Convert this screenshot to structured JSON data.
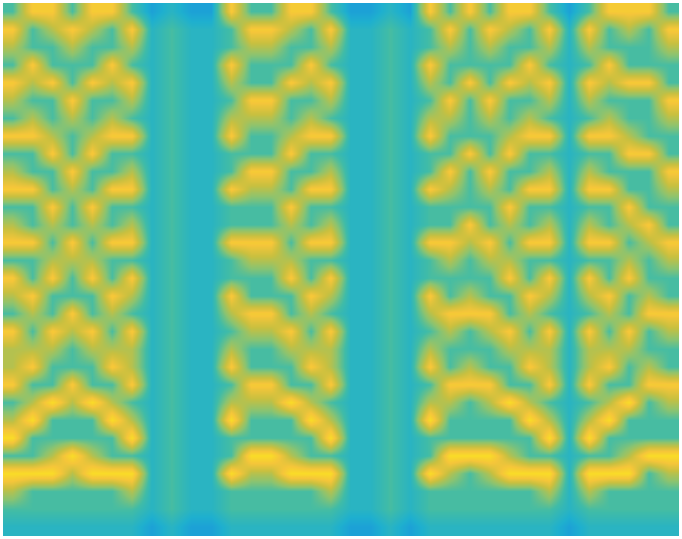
{
  "chart_data": {
    "type": "heatmap",
    "tick_labels": false,
    "color_range": [
      0,
      9
    ],
    "cells": [
      [
        4,
        8,
        8,
        4,
        8,
        8,
        4,
        2,
        3,
        2,
        2,
        8,
        4,
        4,
        8,
        8,
        4,
        2,
        2,
        3,
        2,
        8,
        4,
        8,
        4,
        8,
        8,
        4,
        2,
        4,
        8,
        8,
        8,
        4
      ],
      [
        8,
        4,
        6,
        8,
        6,
        4,
        8,
        3,
        4,
        3,
        3,
        4,
        8,
        8,
        6,
        4,
        8,
        3,
        3,
        4,
        3,
        4,
        8,
        4,
        8,
        6,
        4,
        8,
        3,
        8,
        4,
        6,
        4,
        8
      ],
      [
        6,
        4,
        4,
        6,
        4,
        4,
        6,
        3,
        4,
        3,
        3,
        4,
        6,
        6,
        4,
        4,
        6,
        3,
        3,
        4,
        3,
        4,
        6,
        4,
        6,
        4,
        4,
        6,
        3,
        6,
        4,
        4,
        4,
        6
      ],
      [
        4,
        8,
        4,
        4,
        4,
        8,
        4,
        3,
        4,
        3,
        3,
        8,
        4,
        4,
        4,
        8,
        4,
        3,
        3,
        4,
        3,
        8,
        4,
        4,
        4,
        4,
        8,
        4,
        3,
        4,
        8,
        4,
        4,
        4
      ],
      [
        8,
        6,
        8,
        4,
        8,
        6,
        8,
        3,
        4,
        3,
        3,
        6,
        4,
        4,
        8,
        6,
        8,
        3,
        3,
        4,
        3,
        6,
        4,
        8,
        4,
        8,
        6,
        8,
        3,
        8,
        6,
        8,
        8,
        4
      ],
      [
        6,
        4,
        4,
        8,
        4,
        4,
        6,
        3,
        4,
        3,
        3,
        4,
        8,
        8,
        4,
        4,
        6,
        3,
        3,
        4,
        3,
        4,
        8,
        4,
        8,
        4,
        4,
        6,
        3,
        6,
        4,
        4,
        4,
        8
      ],
      [
        4,
        6,
        4,
        6,
        4,
        6,
        4,
        3,
        4,
        3,
        3,
        6,
        6,
        6,
        4,
        6,
        4,
        3,
        3,
        4,
        3,
        6,
        6,
        4,
        6,
        4,
        6,
        4,
        3,
        4,
        6,
        4,
        4,
        6
      ],
      [
        8,
        8,
        6,
        4,
        6,
        8,
        8,
        3,
        4,
        3,
        3,
        8,
        4,
        4,
        6,
        8,
        8,
        3,
        3,
        4,
        3,
        8,
        4,
        4,
        4,
        6,
        8,
        8,
        3,
        8,
        8,
        6,
        4,
        4
      ],
      [
        4,
        4,
        8,
        4,
        8,
        4,
        4,
        3,
        4,
        3,
        3,
        4,
        4,
        4,
        8,
        4,
        4,
        3,
        3,
        4,
        3,
        4,
        4,
        8,
        4,
        8,
        4,
        4,
        3,
        4,
        4,
        8,
        8,
        4
      ],
      [
        6,
        4,
        4,
        8,
        4,
        4,
        6,
        3,
        4,
        3,
        3,
        4,
        8,
        8,
        4,
        4,
        6,
        3,
        3,
        4,
        3,
        4,
        8,
        4,
        8,
        4,
        4,
        6,
        3,
        6,
        4,
        4,
        4,
        8
      ],
      [
        8,
        8,
        4,
        6,
        4,
        8,
        8,
        3,
        4,
        3,
        3,
        8,
        6,
        6,
        4,
        8,
        8,
        3,
        3,
        4,
        3,
        8,
        6,
        4,
        6,
        4,
        8,
        8,
        3,
        8,
        8,
        4,
        4,
        6
      ],
      [
        4,
        4,
        8,
        4,
        8,
        4,
        4,
        3,
        4,
        3,
        3,
        4,
        4,
        4,
        8,
        4,
        4,
        3,
        3,
        4,
        3,
        4,
        4,
        4,
        4,
        8,
        4,
        4,
        3,
        4,
        4,
        8,
        4,
        4
      ],
      [
        6,
        4,
        6,
        4,
        6,
        4,
        6,
        3,
        4,
        3,
        3,
        4,
        4,
        4,
        6,
        4,
        6,
        3,
        3,
        4,
        3,
        4,
        4,
        8,
        4,
        6,
        4,
        6,
        3,
        6,
        4,
        6,
        8,
        4
      ],
      [
        8,
        8,
        4,
        8,
        4,
        8,
        8,
        3,
        4,
        3,
        3,
        8,
        8,
        8,
        4,
        8,
        8,
        3,
        3,
        4,
        3,
        8,
        8,
        6,
        8,
        4,
        8,
        8,
        3,
        8,
        8,
        4,
        6,
        8
      ],
      [
        4,
        4,
        6,
        6,
        6,
        4,
        4,
        3,
        4,
        3,
        3,
        4,
        6,
        6,
        6,
        4,
        4,
        3,
        3,
        4,
        3,
        4,
        6,
        4,
        6,
        6,
        4,
        4,
        3,
        4,
        4,
        6,
        4,
        6
      ],
      [
        8,
        4,
        8,
        4,
        8,
        4,
        8,
        3,
        4,
        3,
        3,
        4,
        4,
        4,
        8,
        4,
        8,
        3,
        3,
        4,
        3,
        4,
        4,
        4,
        4,
        8,
        4,
        8,
        3,
        8,
        4,
        8,
        4,
        4
      ],
      [
        6,
        8,
        4,
        4,
        4,
        8,
        6,
        3,
        4,
        3,
        3,
        8,
        4,
        4,
        4,
        8,
        6,
        3,
        3,
        4,
        3,
        8,
        4,
        6,
        4,
        4,
        8,
        6,
        3,
        6,
        8,
        4,
        6,
        4
      ],
      [
        4,
        6,
        4,
        8,
        4,
        6,
        4,
        3,
        4,
        3,
        3,
        6,
        8,
        8,
        4,
        6,
        4,
        3,
        3,
        4,
        3,
        6,
        8,
        8,
        8,
        4,
        6,
        4,
        3,
        4,
        6,
        4,
        8,
        8
      ],
      [
        8,
        4,
        8,
        6,
        8,
        4,
        8,
        3,
        4,
        3,
        3,
        4,
        6,
        6,
        8,
        4,
        8,
        3,
        3,
        4,
        3,
        4,
        6,
        4,
        6,
        8,
        4,
        8,
        3,
        8,
        4,
        8,
        4,
        6
      ],
      [
        6,
        6,
        6,
        4,
        6,
        6,
        6,
        3,
        4,
        3,
        3,
        6,
        4,
        4,
        6,
        6,
        6,
        3,
        3,
        4,
        3,
        6,
        4,
        4,
        4,
        6,
        6,
        6,
        3,
        6,
        6,
        6,
        4,
        4
      ],
      [
        6,
        8,
        4,
        4,
        4,
        8,
        6,
        3,
        4,
        3,
        3,
        8,
        4,
        4,
        4,
        8,
        6,
        3,
        3,
        4,
        3,
        8,
        4,
        6,
        4,
        4,
        8,
        6,
        3,
        6,
        8,
        4,
        6,
        4
      ],
      [
        8,
        4,
        4,
        8,
        4,
        4,
        8,
        3,
        4,
        3,
        3,
        4,
        8,
        8,
        4,
        4,
        8,
        3,
        3,
        4,
        3,
        4,
        8,
        8,
        8,
        4,
        4,
        8,
        3,
        8,
        4,
        4,
        8,
        8
      ],
      [
        4,
        6,
        9,
        6,
        9,
        6,
        4,
        3,
        4,
        3,
        3,
        6,
        6,
        6,
        9,
        6,
        4,
        3,
        3,
        4,
        3,
        6,
        6,
        4,
        6,
        9,
        6,
        4,
        3,
        4,
        6,
        9,
        4,
        6
      ],
      [
        6,
        9,
        4,
        4,
        4,
        9,
        6,
        3,
        4,
        3,
        3,
        9,
        4,
        4,
        4,
        9,
        6,
        3,
        3,
        4,
        3,
        9,
        4,
        4,
        4,
        4,
        9,
        6,
        3,
        6,
        9,
        4,
        4,
        4
      ],
      [
        9,
        4,
        4,
        4,
        4,
        4,
        9,
        3,
        4,
        3,
        3,
        4,
        4,
        4,
        4,
        4,
        9,
        3,
        3,
        4,
        3,
        4,
        4,
        4,
        4,
        4,
        4,
        9,
        3,
        9,
        4,
        4,
        4,
        4
      ],
      [
        4,
        4,
        6,
        9,
        6,
        4,
        4,
        3,
        4,
        3,
        3,
        4,
        9,
        9,
        6,
        4,
        4,
        3,
        3,
        4,
        3,
        4,
        9,
        9,
        9,
        6,
        4,
        4,
        3,
        4,
        4,
        6,
        9,
        9
      ],
      [
        9,
        9,
        9,
        6,
        9,
        9,
        9,
        3,
        4,
        3,
        3,
        9,
        6,
        6,
        9,
        9,
        9,
        3,
        3,
        4,
        3,
        9,
        6,
        4,
        6,
        9,
        9,
        9,
        3,
        9,
        9,
        9,
        4,
        6
      ],
      [
        6,
        4,
        4,
        4,
        4,
        4,
        6,
        3,
        4,
        3,
        3,
        4,
        4,
        4,
        4,
        4,
        6,
        3,
        3,
        4,
        3,
        4,
        4,
        4,
        4,
        4,
        4,
        6,
        3,
        6,
        4,
        4,
        4,
        4
      ],
      [
        4,
        4,
        4,
        4,
        4,
        4,
        4,
        3,
        4,
        3,
        3,
        4,
        4,
        4,
        4,
        4,
        4,
        3,
        3,
        4,
        3,
        4,
        4,
        4,
        4,
        4,
        4,
        4,
        3,
        4,
        4,
        4,
        4,
        4
      ],
      [
        3,
        3,
        3,
        3,
        3,
        3,
        3,
        2,
        3,
        2,
        2,
        3,
        3,
        3,
        3,
        3,
        3,
        2,
        2,
        3,
        2,
        3,
        3,
        3,
        3,
        3,
        3,
        3,
        2,
        3,
        3,
        3,
        3,
        3
      ]
    ]
  }
}
